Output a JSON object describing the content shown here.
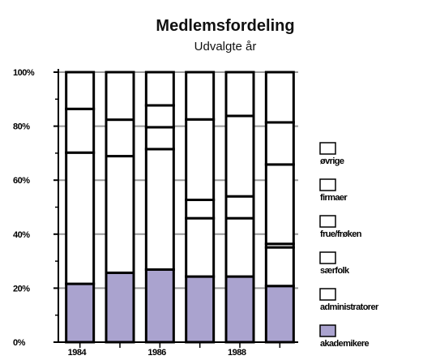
{
  "chart_data": {
    "type": "bar",
    "stacked": true,
    "title": "Medlemsfordeling",
    "subtitle": "Udvalgte år",
    "categories": [
      "1984",
      "",
      "1986",
      "",
      "1988",
      ""
    ],
    "x_tick_labels": [
      "1984",
      "1986",
      "1988"
    ],
    "y_tick_labels": [
      "0%",
      "20%",
      "40%",
      "60%",
      "80%",
      "100%"
    ],
    "ylim": [
      0,
      100
    ],
    "grid": "horizontal",
    "legend_position": "right",
    "series": [
      {
        "name": "akademikere",
        "color": "#aaa3cf",
        "values": [
          21.6,
          25.7,
          26.9,
          24.3,
          24.3,
          20.8
        ]
      },
      {
        "name": "administratorer",
        "color": "#ffffff",
        "values": [
          48.6,
          43.2,
          44.6,
          21.6,
          21.6,
          14.3
        ]
      },
      {
        "name": "særfolk",
        "color": "#ffffff",
        "values": [
          0,
          0,
          0,
          6.8,
          8.1,
          1.3
        ]
      },
      {
        "name": "frue/frøken",
        "color": "#ffffff",
        "values": [
          0,
          0,
          8.1,
          0,
          0,
          29.4
        ]
      },
      {
        "name": "firmaer",
        "color": "#ffffff",
        "values": [
          16.2,
          13.5,
          8.1,
          29.8,
          29.8,
          15.6
        ]
      },
      {
        "name": "øvrige",
        "color": "#ffffff",
        "values": [
          13.6,
          17.6,
          12.3,
          17.5,
          16.2,
          18.6
        ]
      }
    ]
  }
}
